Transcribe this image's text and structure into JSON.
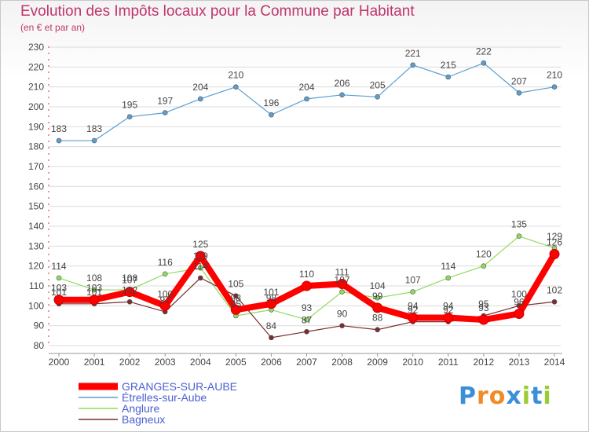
{
  "chart_data": {
    "type": "line",
    "title": "Evolution des Impôts locaux pour la Commune par Habitant",
    "subtitle": "(en € et par an)",
    "x": [
      "2000",
      "2001",
      "2002",
      "2003",
      "2004",
      "2005",
      "2006",
      "2007",
      "2008",
      "2009",
      "2010",
      "2011",
      "2012",
      "2013",
      "2014"
    ],
    "ylim": [
      80,
      230
    ],
    "yticks": [
      80,
      90,
      100,
      110,
      120,
      130,
      140,
      150,
      160,
      170,
      180,
      190,
      200,
      210,
      220,
      230
    ],
    "grid": true,
    "legend_position": "bottom-left",
    "series": [
      {
        "name": "GRANGES-SUR-AUBE",
        "color": "#ff0000",
        "values": [
          103,
          103,
          107,
          100,
          125,
          98,
          101,
          110,
          111,
          99,
          94,
          94,
          93,
          96,
          126
        ]
      },
      {
        "name": "Étrelles-sur-Aube",
        "color": "#5b9fd2",
        "values": [
          183,
          183,
          195,
          197,
          204,
          210,
          196,
          204,
          206,
          205,
          221,
          215,
          222,
          207,
          210
        ]
      },
      {
        "name": "Anglure",
        "color": "#8fdc5c",
        "values": [
          114,
          108,
          108,
          116,
          119,
          95,
          98,
          93,
          107,
          104,
          107,
          114,
          120,
          135,
          129
        ]
      },
      {
        "name": "Bagneux",
        "color": "#7a2e2e",
        "values": [
          101,
          101,
          102,
          97,
          114,
          105,
          84,
          87,
          90,
          88,
          92,
          92,
          95,
          100,
          102
        ]
      }
    ]
  },
  "logo": {
    "text": "Proxiti",
    "letters": [
      "P",
      "r",
      "o",
      "x",
      "i",
      "t",
      "i"
    ]
  },
  "colors": {
    "title": "#c0356b",
    "axis_text": "#444444",
    "grid": "#dcdcdc",
    "legend_text": "#4a5fd0"
  }
}
